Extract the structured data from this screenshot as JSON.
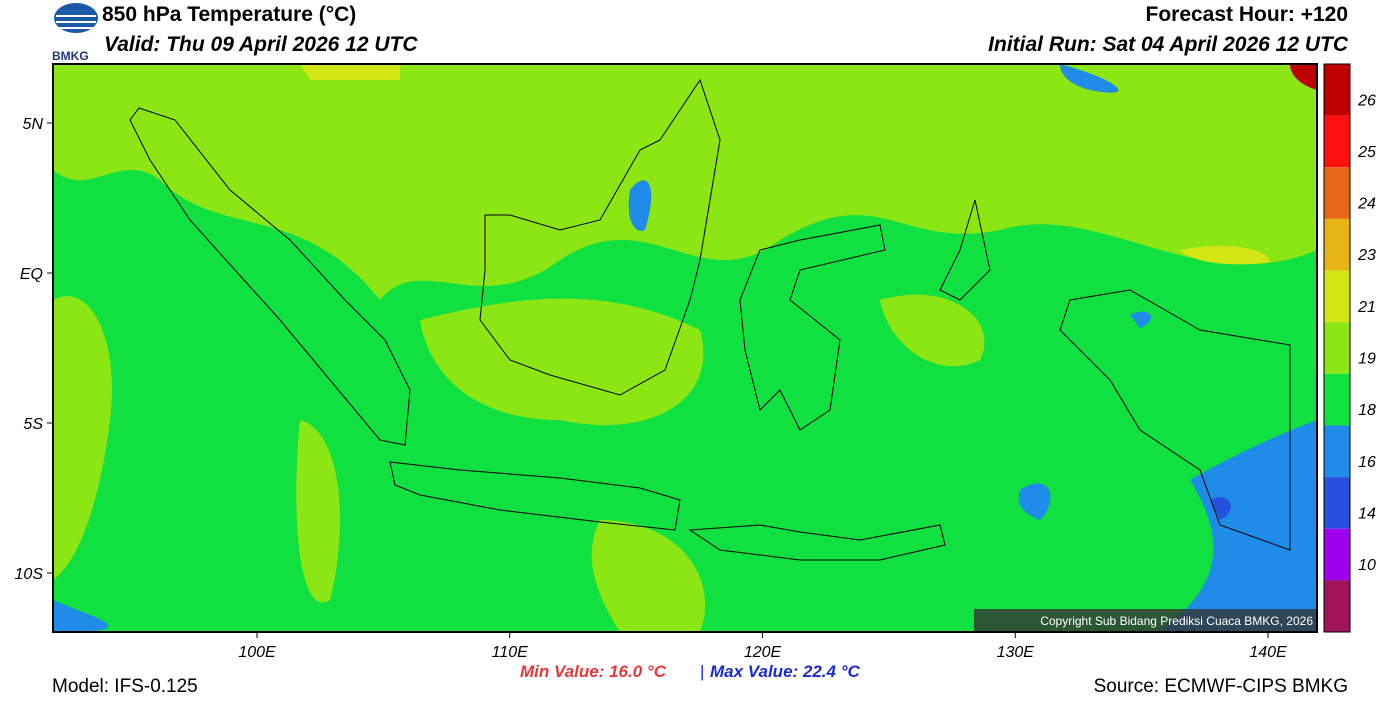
{
  "header": {
    "title": "850 hPa Temperature (°C)",
    "valid": "Valid: Thu 09 April 2026 12 UTC",
    "forecast_hour": "Forecast Hour: +120",
    "initial_run": "Initial Run: Sat 04 April 2026 12 UTC",
    "logo_text": "BMKG"
  },
  "map": {
    "lat_labels": [
      "5N",
      "EQ",
      "5S",
      "10S"
    ],
    "lon_labels": [
      "100E",
      "110E",
      "120E",
      "130E",
      "140E"
    ],
    "copyright": "Copyright Sub Bidang Prediksi Cuaca BMKG, 2026"
  },
  "colorbar": {
    "ticks": [
      26,
      25,
      24,
      23,
      21,
      19,
      18,
      16,
      14,
      10
    ],
    "colors": [
      "#c00000",
      "#ff1010",
      "#e86818",
      "#e6b414",
      "#d2e614",
      "#8ce614",
      "#10e040",
      "#1e8ce8",
      "#2850e0",
      "#a000f0",
      "#a0145a"
    ]
  },
  "footer": {
    "model": "Model: IFS-0.125",
    "min_value": "Min Value: 16.0 °C",
    "separator": "|",
    "max_value": "Max Value: 22.4 °C",
    "source": "Source: ECMWF-CIPS BMKG"
  }
}
